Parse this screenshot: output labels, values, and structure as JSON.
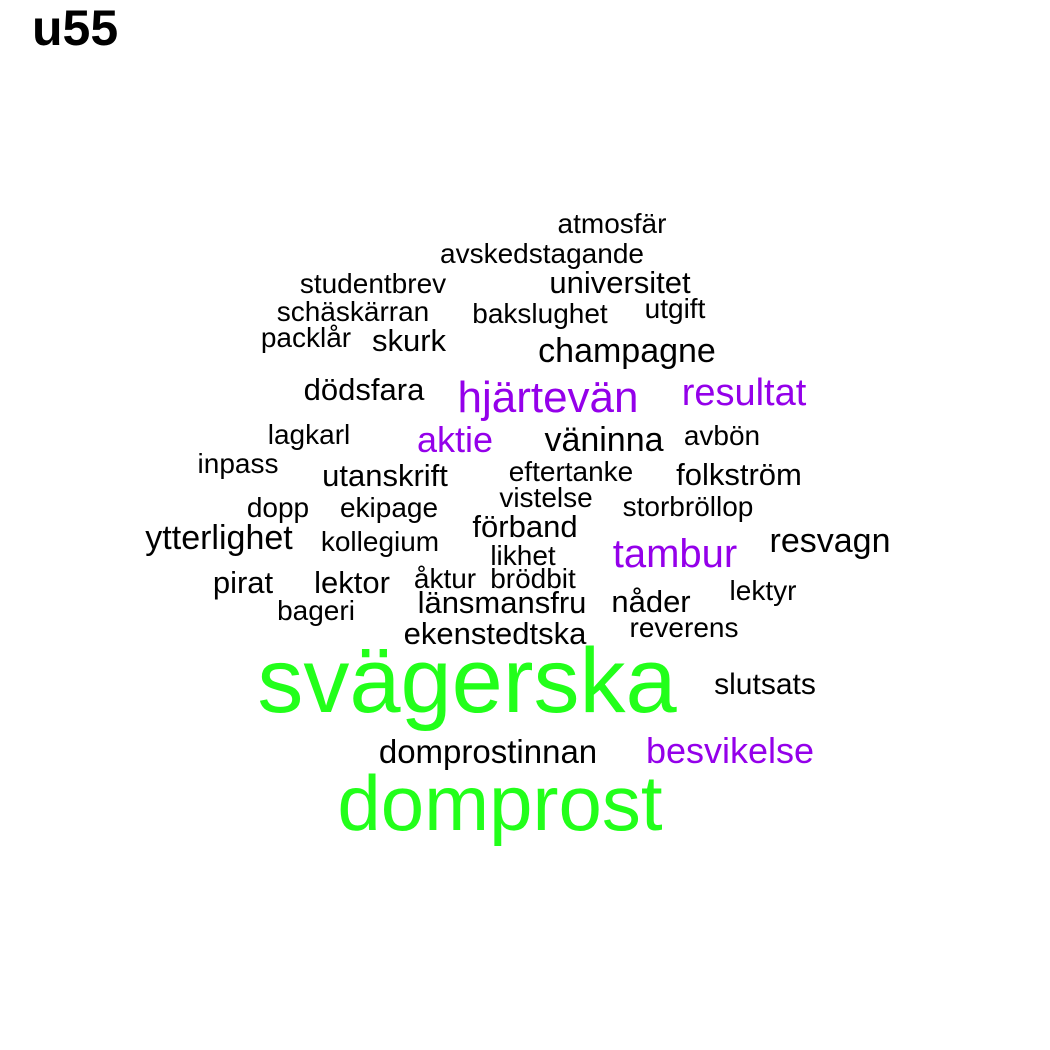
{
  "title": "u55",
  "colors": {
    "high": "#22ff1a",
    "mid": "#9400ea",
    "low": "#000000"
  },
  "words": [
    {
      "text": "svägerska",
      "tier": "high"
    },
    {
      "text": "domprost",
      "tier": "high"
    },
    {
      "text": "hjärtevän",
      "tier": "mid"
    },
    {
      "text": "resultat",
      "tier": "mid"
    },
    {
      "text": "aktie",
      "tier": "mid"
    },
    {
      "text": "tambur",
      "tier": "mid"
    },
    {
      "text": "besvikelse",
      "tier": "mid"
    },
    {
      "text": "atmosfär",
      "tier": "low"
    },
    {
      "text": "avskedstagande",
      "tier": "low"
    },
    {
      "text": "studentbrev",
      "tier": "low"
    },
    {
      "text": "universitet",
      "tier": "low"
    },
    {
      "text": "schäskärran",
      "tier": "low"
    },
    {
      "text": "bakslughet",
      "tier": "low"
    },
    {
      "text": "utgift",
      "tier": "low"
    },
    {
      "text": "packlår",
      "tier": "low"
    },
    {
      "text": "skurk",
      "tier": "low"
    },
    {
      "text": "champagne",
      "tier": "low"
    },
    {
      "text": "dödsfara",
      "tier": "low"
    },
    {
      "text": "lagkarl",
      "tier": "low"
    },
    {
      "text": "väninna",
      "tier": "low"
    },
    {
      "text": "avbön",
      "tier": "low"
    },
    {
      "text": "inpass",
      "tier": "low"
    },
    {
      "text": "utanskrift",
      "tier": "low"
    },
    {
      "text": "eftertanke",
      "tier": "low"
    },
    {
      "text": "folkström",
      "tier": "low"
    },
    {
      "text": "vistelse",
      "tier": "low"
    },
    {
      "text": "dopp",
      "tier": "low"
    },
    {
      "text": "ekipage",
      "tier": "low"
    },
    {
      "text": "storbröllop",
      "tier": "low"
    },
    {
      "text": "förband",
      "tier": "low"
    },
    {
      "text": "ytterlighet",
      "tier": "low"
    },
    {
      "text": "kollegium",
      "tier": "low"
    },
    {
      "text": "likhet",
      "tier": "low"
    },
    {
      "text": "resvagn",
      "tier": "low"
    },
    {
      "text": "pirat",
      "tier": "low"
    },
    {
      "text": "lektor",
      "tier": "low"
    },
    {
      "text": "åktur",
      "tier": "low"
    },
    {
      "text": "brödbit",
      "tier": "low"
    },
    {
      "text": "lektyr",
      "tier": "low"
    },
    {
      "text": "bageri",
      "tier": "low"
    },
    {
      "text": "länsmansfru",
      "tier": "low"
    },
    {
      "text": "nåder",
      "tier": "low"
    },
    {
      "text": "ekenstedtska",
      "tier": "low"
    },
    {
      "text": "reverens",
      "tier": "low"
    },
    {
      "text": "slutsats",
      "tier": "low"
    },
    {
      "text": "domprostinnan",
      "tier": "low"
    }
  ]
}
